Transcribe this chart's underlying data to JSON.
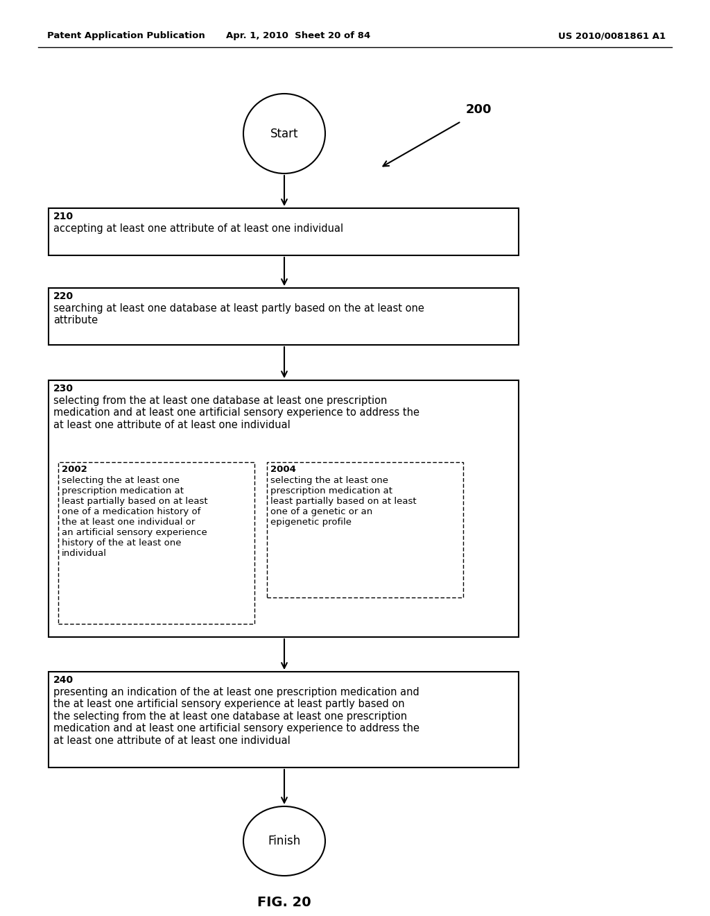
{
  "bg_color": "#ffffff",
  "header_left": "Patent Application Publication",
  "header_center": "Apr. 1, 2010  Sheet 20 of 84",
  "header_right": "US 2010/0081861 A1",
  "fig_label": "FIG. 20",
  "diagram_label": "200",
  "start_text": "Start",
  "finish_text": "Finish",
  "boxes": [
    {
      "id": "210",
      "label": "210",
      "text": "accepting at least one attribute of at least one individual"
    },
    {
      "id": "220",
      "label": "220",
      "text": "searching at least one database at least partly based on the at least one\nattribute"
    },
    {
      "id": "230",
      "label": "230",
      "text": "selecting from the at least one database at least one prescription\nmedication and at least one artificial sensory experience to address the\nat least one attribute of at least one individual"
    },
    {
      "id": "240",
      "label": "240",
      "text": "presenting an indication of the at least one prescription medication and\nthe at least one artificial sensory experience at least partly based on\nthe selecting from the at least one database at least one prescription\nmedication and at least one artificial sensory experience to address the\nat least one attribute of at least one individual"
    }
  ],
  "sub_boxes": [
    {
      "id": "2002",
      "label": "2002",
      "text": "selecting the at least one\nprescription medication at\nleast partially based on at least\none of a medication history of\nthe at least one individual or\nan artificial sensory experience\nhistory of the at least one\nindividual"
    },
    {
      "id": "2004",
      "label": "2004",
      "text": "selecting the at least one\nprescription medication at\nleast partially based on at least\none of a genetic or an\nepigenetic profile"
    }
  ]
}
